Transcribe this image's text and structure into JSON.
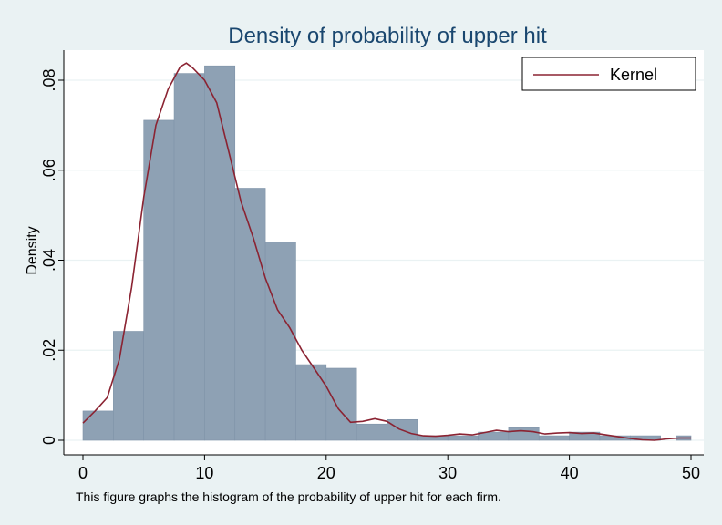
{
  "chart_data": {
    "type": "bar",
    "title": "Density of probability of upper hit",
    "xlabel": "",
    "ylabel": "Density",
    "note": "This figure graphs the histogram of the probability of upper hit for each firm.",
    "xlim": [
      0,
      50
    ],
    "ylim": [
      0,
      0.08
    ],
    "xticks": [
      0,
      10,
      20,
      30,
      40,
      50
    ],
    "xtick_labels": [
      "0",
      "10",
      "20",
      "30",
      "40",
      "50"
    ],
    "yticks": [
      0,
      0.02,
      0.04,
      0.06,
      0.08
    ],
    "ytick_labels": [
      "0",
      ".02",
      ".04",
      ".06",
      ".08"
    ],
    "grid": true,
    "legend_position": "top-right",
    "colors": {
      "bars": "#8ea1b4",
      "bar_edge": "#7f93a8",
      "kernel": "#8b2332",
      "plot_bg": "#ffffff",
      "outer_bg": "#eaf2f3",
      "title": "#1a476f",
      "grid": "#eaf2f3"
    },
    "histogram": {
      "bin_width": 2.5,
      "bins": [
        {
          "x0": 0.0,
          "value": 0.0065
        },
        {
          "x0": 2.5,
          "value": 0.0242
        },
        {
          "x0": 5.0,
          "value": 0.0711
        },
        {
          "x0": 7.5,
          "value": 0.0815
        },
        {
          "x0": 10.0,
          "value": 0.0832
        },
        {
          "x0": 12.5,
          "value": 0.056
        },
        {
          "x0": 15.0,
          "value": 0.044
        },
        {
          "x0": 17.5,
          "value": 0.0168
        },
        {
          "x0": 20.0,
          "value": 0.016
        },
        {
          "x0": 22.5,
          "value": 0.0036
        },
        {
          "x0": 25.0,
          "value": 0.0046
        },
        {
          "x0": 27.5,
          "value": 0.001
        },
        {
          "x0": 30.0,
          "value": 0.001
        },
        {
          "x0": 32.5,
          "value": 0.0018
        },
        {
          "x0": 35.0,
          "value": 0.0028
        },
        {
          "x0": 37.5,
          "value": 0.001
        },
        {
          "x0": 40.0,
          "value": 0.0018
        },
        {
          "x0": 42.5,
          "value": 0.001
        },
        {
          "x0": 45.0,
          "value": 0.001
        },
        {
          "x0": 47.5,
          "value": 0.0
        },
        {
          "x0": 50.0,
          "value": 0.001
        }
      ]
    },
    "series": [
      {
        "name": "Kernel",
        "type": "line",
        "x": [
          0,
          1,
          2,
          3,
          4,
          5,
          6,
          7,
          8,
          8.5,
          9,
          10,
          11,
          12,
          13,
          14,
          15,
          16,
          17,
          18,
          19,
          20,
          21,
          22,
          23,
          24,
          25,
          26,
          27,
          28,
          29,
          30,
          31,
          32,
          33,
          34,
          35,
          36,
          37,
          38,
          39,
          40,
          41,
          42,
          43,
          44,
          45,
          46,
          47,
          48,
          49,
          50
        ],
        "y": [
          0.0038,
          0.0065,
          0.0095,
          0.018,
          0.034,
          0.054,
          0.07,
          0.078,
          0.083,
          0.0838,
          0.0828,
          0.08,
          0.075,
          0.064,
          0.053,
          0.045,
          0.036,
          0.029,
          0.025,
          0.02,
          0.016,
          0.012,
          0.007,
          0.004,
          0.0042,
          0.0048,
          0.0042,
          0.0025,
          0.0015,
          0.001,
          0.0009,
          0.0011,
          0.0014,
          0.0012,
          0.0017,
          0.0022,
          0.0019,
          0.0021,
          0.0019,
          0.0014,
          0.0016,
          0.0017,
          0.0015,
          0.0016,
          0.0012,
          0.0008,
          0.0004,
          0.0001,
          0.0,
          0.0003,
          0.0005,
          0.0005
        ]
      }
    ]
  }
}
